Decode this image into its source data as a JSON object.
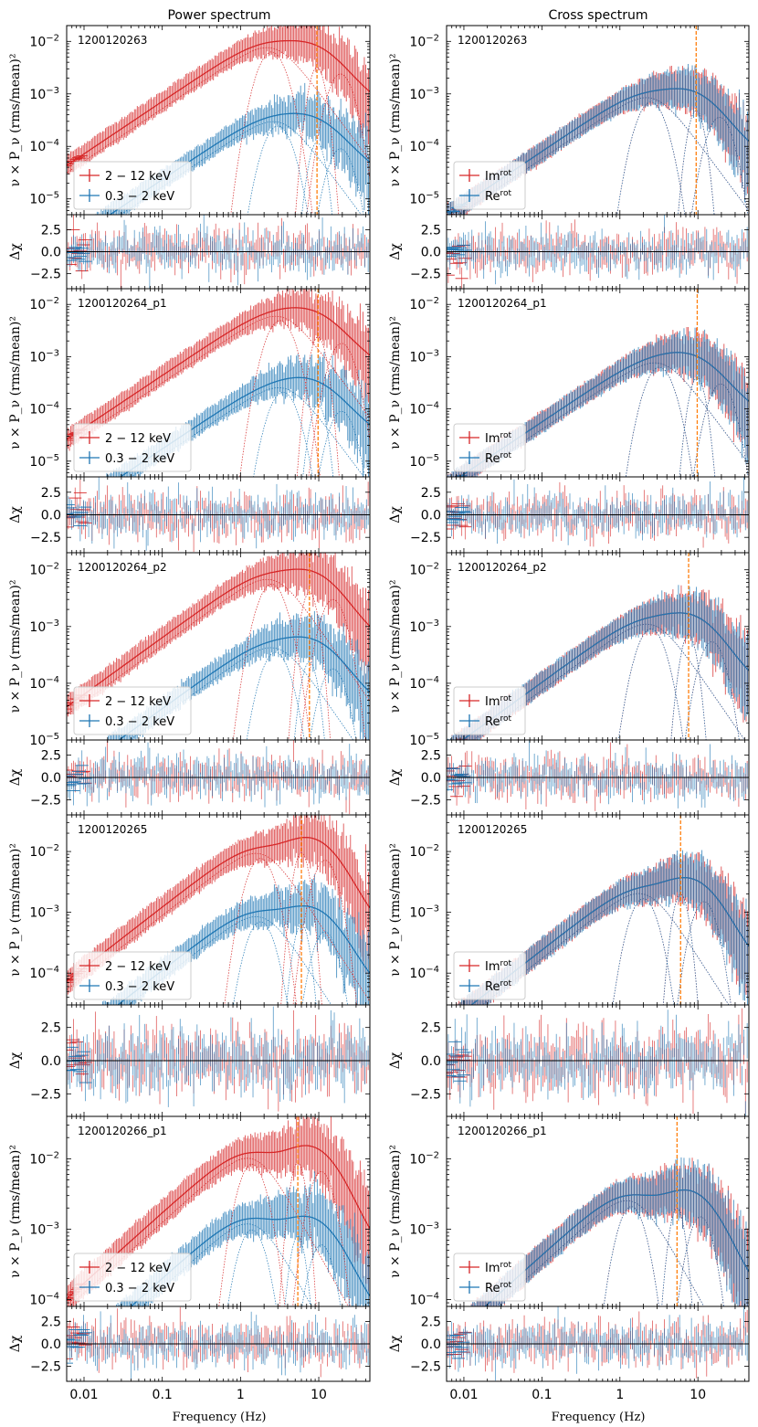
{
  "figure_titles": [
    "Power spectrum",
    "Cross spectrum"
  ],
  "colors": {
    "hard": "#d62728",
    "soft": "#1f77b4",
    "qpo": "#ff7f0e",
    "axis": "#000000"
  },
  "chart_data": {
    "type": "line",
    "description": "Grid of power and cross spectra with residual panels; x log-scaled frequency",
    "x_axis": {
      "label": "Frequency (Hz)",
      "scale": "log",
      "range": [
        0.006,
        45
      ],
      "ticks": [
        0.01,
        0.1,
        1,
        10
      ],
      "tick_labels": [
        "0.01",
        "0.1",
        "1",
        "10"
      ]
    },
    "y_label_main": "ν × P_ν (rms/mean)²",
    "y_label_resid": "Δχ",
    "resid_ticks": [
      "2.5",
      "0.0",
      "−2.5"
    ],
    "resid_range": [
      -4.2,
      4.2
    ],
    "rows": [
      {
        "obsid": "1200120263",
        "y_range": [
          5e-06,
          0.02
        ],
        "y_ticks": [
          {
            "v": 1e-05,
            "e": "−5"
          },
          {
            "v": 0.0001,
            "e": "−4"
          },
          {
            "v": 0.001,
            "e": "−3"
          },
          {
            "v": 0.01,
            "e": "−2"
          }
        ],
        "qpo_freq": 9.5,
        "power": {
          "legend": [
            "2 − 12 keV",
            "0.3 − 2 keV"
          ],
          "hard_model": {
            "peak_freq": 2.5,
            "peak": 0.009,
            "tail": 0.004
          },
          "soft_model": {
            "peak_freq": 3.0,
            "peak": 0.00035,
            "tail": 0.00015
          }
        },
        "cross": {
          "legend": [
            "Im^rot",
            "Re^rot"
          ],
          "model": {
            "peak_freq": 2.5,
            "peak": 0.001,
            "tail": 0.0006
          }
        }
      },
      {
        "obsid": "1200120264_p1",
        "y_range": [
          5e-06,
          0.02
        ],
        "y_ticks": [
          {
            "v": 1e-05,
            "e": "−5"
          },
          {
            "v": 0.0001,
            "e": "−4"
          },
          {
            "v": 0.001,
            "e": "−3"
          },
          {
            "v": 0.01,
            "e": "−2"
          }
        ],
        "qpo_freq": 9.8,
        "power": {
          "legend": [
            "2 − 12 keV",
            "0.3 − 2 keV"
          ],
          "hard_model": {
            "peak_freq": 3.2,
            "peak": 0.007,
            "tail": 0.003
          },
          "soft_model": {
            "peak_freq": 3.5,
            "peak": 0.0003,
            "tail": 0.00015
          }
        },
        "cross": {
          "legend": [
            "Im^rot",
            "Re^rot"
          ],
          "model": {
            "peak_freq": 3.2,
            "peak": 0.0009,
            "tail": 0.0005
          }
        }
      },
      {
        "obsid": "1200120264_p2",
        "y_range": [
          1e-05,
          0.02
        ],
        "y_ticks": [
          {
            "v": 1e-05,
            "e": "−5"
          },
          {
            "v": 0.0001,
            "e": "−4"
          },
          {
            "v": 0.001,
            "e": "−3"
          },
          {
            "v": 0.01,
            "e": "−2"
          }
        ],
        "qpo_freq": 7.6,
        "power": {
          "legend": [
            "2 − 12 keV",
            "0.3 − 2 keV"
          ],
          "hard_model": {
            "peak_freq": 2.5,
            "peak": 0.008,
            "tail": 0.005
          },
          "soft_model": {
            "peak_freq": 2.8,
            "peak": 0.0005,
            "tail": 0.0003
          }
        },
        "cross": {
          "legend": [
            "Im^rot",
            "Re^rot"
          ],
          "model": {
            "peak_freq": 2.5,
            "peak": 0.0013,
            "tail": 0.0009
          }
        }
      },
      {
        "obsid": "1200120265",
        "y_range": [
          3e-05,
          0.04
        ],
        "y_ticks": [
          {
            "v": 0.0001,
            "e": "−4"
          },
          {
            "v": 0.001,
            "e": "−3"
          },
          {
            "v": 0.01,
            "e": "−2"
          }
        ],
        "qpo_freq": 6.0,
        "power": {
          "legend": [
            "2 − 12 keV",
            "0.3 − 2 keV"
          ],
          "hard_model": {
            "peak_freq": 1.8,
            "peak": 0.011,
            "tail": 0.012
          },
          "soft_model": {
            "peak_freq": 1.8,
            "peak": 0.001,
            "tail": 0.0008
          }
        },
        "cross": {
          "legend": [
            "Im^rot",
            "Re^rot"
          ],
          "model": {
            "peak_freq": 2.0,
            "peak": 0.0024,
            "tail": 0.0025
          }
        }
      },
      {
        "obsid": "1200120266_p1",
        "y_range": [
          8e-05,
          0.04
        ],
        "y_ticks": [
          {
            "v": 0.0001,
            "e": "−4"
          },
          {
            "v": 0.001,
            "e": "−3"
          },
          {
            "v": 0.01,
            "e": "−2"
          }
        ],
        "qpo_freq": 5.4,
        "power": {
          "legend": [
            "2 − 12 keV",
            "0.3 − 2 keV"
          ],
          "hard_model": {
            "peak_freq": 1.4,
            "peak": 0.012,
            "tail": 0.011
          },
          "soft_model": {
            "peak_freq": 1.4,
            "peak": 0.0014,
            "tail": 0.001
          }
        },
        "cross": {
          "legend": [
            "Im^rot",
            "Re^rot"
          ],
          "model": {
            "peak_freq": 1.4,
            "peak": 0.003,
            "tail": 0.0025
          }
        }
      }
    ]
  }
}
